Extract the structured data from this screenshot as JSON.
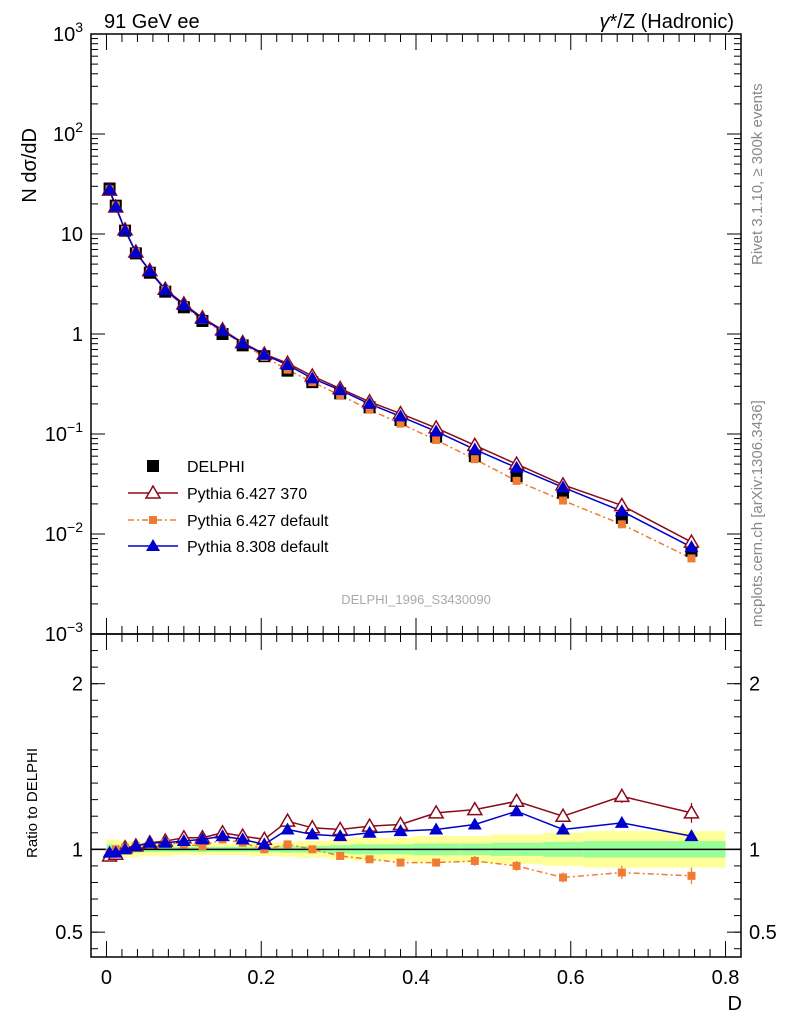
{
  "header": {
    "left_title": "91 GeV ee",
    "right_title_gamma": "γ",
    "right_title_rest": "*/Z (Hadronic)"
  },
  "side_labels": {
    "rivet": "Rivet 3.1.10, ≥ 300k events",
    "mcplots": "mcplots.cern.ch [arXiv:1306.3436]"
  },
  "watermark": "DELPHI_1996_S3430090",
  "chart_data": [
    {
      "type": "line",
      "panel": "main",
      "yscale": "log",
      "ylabel": "N dσ/dD",
      "xlabel": "D",
      "xlim": [
        -0.02,
        0.82
      ],
      "ylim": [
        0.001,
        1000
      ],
      "yticks": [
        {
          "v": 0.001,
          "base": "10",
          "exp": "−3"
        },
        {
          "v": 0.01,
          "base": "10",
          "exp": "−2"
        },
        {
          "v": 0.1,
          "base": "10",
          "exp": "−1"
        },
        {
          "v": 1,
          "base": "1",
          "exp": ""
        },
        {
          "v": 10,
          "base": "10",
          "exp": ""
        },
        {
          "v": 100,
          "base": "10",
          "exp": "2"
        },
        {
          "v": 1000,
          "base": "10",
          "exp": "3"
        }
      ],
      "x": [
        0.004,
        0.012,
        0.024,
        0.038,
        0.056,
        0.076,
        0.1,
        0.124,
        0.15,
        0.176,
        0.204,
        0.234,
        0.266,
        0.302,
        0.34,
        0.38,
        0.426,
        0.476,
        0.53,
        0.59,
        0.666,
        0.756
      ],
      "series": [
        {
          "name": "DELPHI",
          "style": "data",
          "color": "#000000",
          "values": [
            28.5,
            19.2,
            10.8,
            6.4,
            4.1,
            2.65,
            1.85,
            1.35,
            1.0,
            0.77,
            0.6,
            0.43,
            0.33,
            0.255,
            0.185,
            0.138,
            0.094,
            0.06,
            0.038,
            0.026,
            0.0145,
            0.0068
          ]
        },
        {
          "name": "Pythia 6.427 370",
          "style": "open-triangle",
          "color": "#8b0a1a",
          "values": [
            27.5,
            18.6,
            11.0,
            6.6,
            4.3,
            2.8,
            2.0,
            1.45,
            1.1,
            0.82,
            0.63,
            0.51,
            0.38,
            0.285,
            0.21,
            0.16,
            0.115,
            0.077,
            0.05,
            0.031,
            0.0193,
            0.0083
          ]
        },
        {
          "name": "Pythia 6.427 default",
          "style": "square-dashed",
          "color": "#f07c33",
          "values": [
            28.0,
            19.3,
            11.0,
            6.6,
            4.2,
            2.75,
            1.9,
            1.38,
            1.06,
            0.8,
            0.59,
            0.44,
            0.33,
            0.245,
            0.175,
            0.127,
            0.087,
            0.056,
            0.034,
            0.0216,
            0.0125,
            0.0057
          ]
        },
        {
          "name": "Pythia 8.308 default",
          "style": "filled-triangle",
          "color": "#0000cc",
          "values": [
            27.8,
            18.8,
            10.9,
            6.55,
            4.25,
            2.75,
            1.95,
            1.42,
            1.08,
            0.81,
            0.62,
            0.49,
            0.36,
            0.275,
            0.2,
            0.15,
            0.106,
            0.07,
            0.046,
            0.0293,
            0.0169,
            0.0074
          ]
        }
      ],
      "legend": [
        "DELPHI",
        "Pythia 6.427 370",
        "Pythia 6.427 default",
        "Pythia 8.308 default"
      ]
    },
    {
      "type": "line",
      "panel": "ratio",
      "ylabel": "Ratio to DELPHI",
      "xlabel": "D",
      "xlim": [
        -0.02,
        0.82
      ],
      "ylim": [
        0.35,
        2.3
      ],
      "yticks": [
        {
          "v": 0.5,
          "label": "0.5"
        },
        {
          "v": 1,
          "label": "1"
        },
        {
          "v": 2,
          "label": "2"
        }
      ],
      "xticks": [
        {
          "v": 0,
          "label": "0"
        },
        {
          "v": 0.2,
          "label": "0.2"
        },
        {
          "v": 0.4,
          "label": "0.4"
        },
        {
          "v": 0.6,
          "label": "0.6"
        },
        {
          "v": 0.8,
          "label": "0.8"
        }
      ],
      "x": [
        0.004,
        0.012,
        0.024,
        0.038,
        0.056,
        0.076,
        0.1,
        0.124,
        0.15,
        0.176,
        0.204,
        0.234,
        0.266,
        0.302,
        0.34,
        0.38,
        0.426,
        0.476,
        0.53,
        0.59,
        0.666,
        0.756
      ],
      "bin_edges": [
        0,
        0.008,
        0.016,
        0.032,
        0.044,
        0.068,
        0.084,
        0.116,
        0.132,
        0.168,
        0.184,
        0.224,
        0.244,
        0.288,
        0.316,
        0.364,
        0.396,
        0.456,
        0.496,
        0.564,
        0.616,
        0.716,
        0.8
      ],
      "band_green": [
        0.03,
        0.03,
        0.02,
        0.02,
        0.015,
        0.015,
        0.015,
        0.015,
        0.015,
        0.015,
        0.015,
        0.02,
        0.02,
        0.025,
        0.03,
        0.03,
        0.035,
        0.035,
        0.04,
        0.045,
        0.05,
        0.05
      ],
      "band_yellow": [
        0.06,
        0.06,
        0.05,
        0.05,
        0.04,
        0.04,
        0.035,
        0.035,
        0.035,
        0.035,
        0.04,
        0.045,
        0.05,
        0.06,
        0.07,
        0.07,
        0.08,
        0.08,
        0.09,
        0.1,
        0.11,
        0.11
      ],
      "series": [
        {
          "name": "Pythia 6.427 370",
          "style": "open-triangle",
          "color": "#8b0a1a",
          "values": [
            0.96,
            0.97,
            1.01,
            1.02,
            1.04,
            1.05,
            1.07,
            1.07,
            1.1,
            1.08,
            1.06,
            1.17,
            1.13,
            1.12,
            1.14,
            1.15,
            1.22,
            1.24,
            1.29,
            1.2,
            1.32,
            1.22
          ],
          "errors": [
            0.01,
            0.01,
            0.01,
            0.01,
            0.01,
            0.01,
            0.01,
            0.01,
            0.01,
            0.01,
            0.01,
            0.01,
            0.01,
            0.01,
            0.01,
            0.01,
            0.01,
            0.02,
            0.02,
            0.03,
            0.04,
            0.06
          ]
        },
        {
          "name": "Pythia 6.427 default",
          "style": "square-dashed",
          "color": "#f07c33",
          "values": [
            0.98,
            1.0,
            1.01,
            1.02,
            1.03,
            1.04,
            1.03,
            1.02,
            1.06,
            1.04,
            1.0,
            1.03,
            1.0,
            0.96,
            0.94,
            0.92,
            0.92,
            0.93,
            0.9,
            0.83,
            0.86,
            0.84
          ],
          "errors": [
            0.01,
            0.01,
            0.01,
            0.01,
            0.01,
            0.01,
            0.01,
            0.01,
            0.01,
            0.01,
            0.01,
            0.01,
            0.01,
            0.01,
            0.01,
            0.02,
            0.02,
            0.03,
            0.03,
            0.03,
            0.04,
            0.05
          ]
        },
        {
          "name": "Pythia 8.308 default",
          "style": "filled-triangle",
          "color": "#0000cc",
          "values": [
            0.98,
            0.98,
            1.0,
            1.02,
            1.04,
            1.04,
            1.05,
            1.06,
            1.08,
            1.06,
            1.03,
            1.12,
            1.09,
            1.08,
            1.1,
            1.11,
            1.12,
            1.15,
            1.23,
            1.12,
            1.16,
            1.08
          ],
          "errors": [
            0.01,
            0.01,
            0.01,
            0.01,
            0.01,
            0.01,
            0.01,
            0.01,
            0.01,
            0.01,
            0.01,
            0.01,
            0.01,
            0.01,
            0.01,
            0.01,
            0.01,
            0.01,
            0.02,
            0.02,
            0.02,
            0.03
          ]
        }
      ]
    }
  ]
}
